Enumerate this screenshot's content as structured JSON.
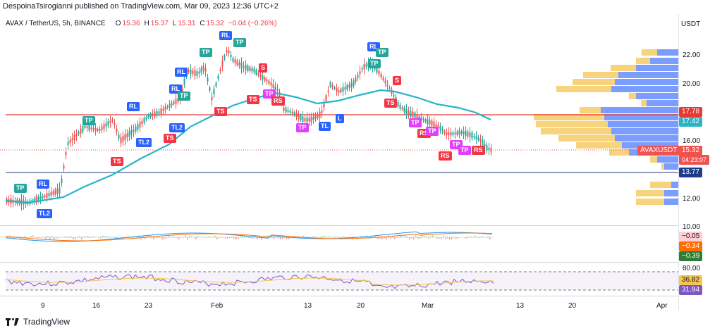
{
  "publisher": "DespoinaTsirogianni published on TradingView.com, Mar 09, 2023 12:36 UTC+2",
  "header": {
    "symbol": "AVAX / TetherUS, 5h, BINANCE",
    "open_label": "O",
    "open": "15.36",
    "high_label": "H",
    "high": "15.37",
    "low_label": "L",
    "low": "15.31",
    "close_label": "C",
    "close": "15.32",
    "change": "−0.04 (−0.26%)"
  },
  "currency": "USDT",
  "price_axis": [
    "22.00",
    "20.00",
    "16.00",
    "12.00",
    "10.00"
  ],
  "price_tags": {
    "red_line": "17.78",
    "ma": "17.42",
    "symbol": "AVAXUSDT",
    "last": "15.32",
    "countdown": "04:23:07",
    "blue_line": "13.77"
  },
  "macd_tags": [
    "−0.05",
    "−0.34",
    "−0.39"
  ],
  "rsi_axis": [
    "80.00"
  ],
  "rsi_tags": [
    "36.82",
    "31.94"
  ],
  "x_axis": [
    "9",
    "16",
    "23",
    "Feb",
    "13",
    "20",
    "Mar",
    "13",
    "20",
    "Apr"
  ],
  "markers": [
    {
      "text": "TP",
      "color": "#26a69a"
    },
    {
      "text": "RL",
      "color": "#2962ff"
    },
    {
      "text": "TL2",
      "color": "#2962ff"
    },
    {
      "text": "TP",
      "color": "#26a69a"
    },
    {
      "text": "RL",
      "color": "#2962ff"
    },
    {
      "text": "TL2",
      "color": "#2962ff"
    },
    {
      "text": "TS",
      "color": "#f23645"
    },
    {
      "text": "RL",
      "color": "#2962ff"
    },
    {
      "text": "TP",
      "color": "#26a69a"
    },
    {
      "text": "RL",
      "color": "#2962ff"
    },
    {
      "text": "TL2",
      "color": "#2962ff"
    },
    {
      "text": "TS",
      "color": "#f23645"
    },
    {
      "text": "TP",
      "color": "#26a69a"
    },
    {
      "text": "RL",
      "color": "#2962ff"
    },
    {
      "text": "TP",
      "color": "#26a69a"
    },
    {
      "text": "TS",
      "color": "#f23645"
    },
    {
      "text": "S",
      "color": "#f23645"
    },
    {
      "text": "TS",
      "color": "#f23645"
    },
    {
      "text": "TP",
      "color": "#e040fb"
    },
    {
      "text": "RS",
      "color": "#f23645"
    },
    {
      "text": "TP",
      "color": "#e040fb"
    },
    {
      "text": "TL",
      "color": "#2962ff"
    },
    {
      "text": "L",
      "color": "#2962ff"
    },
    {
      "text": "RL",
      "color": "#2962ff"
    },
    {
      "text": "TP",
      "color": "#26a69a"
    },
    {
      "text": "TP",
      "color": "#26a69a"
    },
    {
      "text": "S",
      "color": "#f23645"
    },
    {
      "text": "TS",
      "color": "#f23645"
    },
    {
      "text": "TP",
      "color": "#e040fb"
    },
    {
      "text": "RS",
      "color": "#f23645"
    },
    {
      "text": "TP",
      "color": "#e040fb"
    },
    {
      "text": "TP",
      "color": "#e040fb"
    },
    {
      "text": "TP",
      "color": "#e040fb"
    },
    {
      "text": "RS",
      "color": "#f23645"
    },
    {
      "text": "RS",
      "color": "#f23645"
    }
  ],
  "footer": {
    "brand": "TradingView"
  },
  "colors": {
    "up": "#26a69a",
    "down": "#ef5350",
    "ma": "#26b5c9",
    "red_line": "#e53935",
    "blue_line": "#1e3a8a",
    "vp_up": "#4f7cff",
    "vp_down": "#f5c451"
  }
}
